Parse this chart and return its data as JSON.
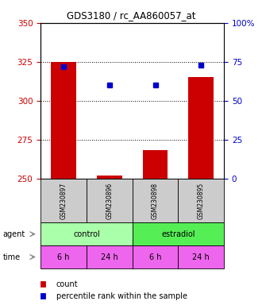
{
  "title": "GDS3180 / rc_AA860057_at",
  "samples": [
    "GSM230897",
    "GSM230896",
    "GSM230898",
    "GSM230895"
  ],
  "bar_values": [
    325,
    252,
    268,
    315
  ],
  "bar_base": 250,
  "percentile_values": [
    72,
    60,
    60,
    73
  ],
  "bar_color": "#cc0000",
  "dot_color": "#0000cc",
  "ylim_left": [
    250,
    350
  ],
  "ylim_right": [
    0,
    100
  ],
  "yticks_left": [
    250,
    275,
    300,
    325,
    350
  ],
  "yticks_right": [
    0,
    25,
    50,
    75,
    100
  ],
  "grid_values": [
    275,
    300,
    325
  ],
  "agent_labels": [
    "control",
    "estradiol"
  ],
  "agent_colors": [
    "#aaffaa",
    "#55ee55"
  ],
  "time_labels": [
    "6 h",
    "24 h",
    "6 h",
    "24 h"
  ],
  "time_color": "#ee66ee",
  "sample_box_color": "#cccccc",
  "legend_count_color": "#cc0000",
  "legend_pct_color": "#0000cc",
  "fig_width": 3.3,
  "fig_height": 3.84,
  "fig_dpi": 100
}
